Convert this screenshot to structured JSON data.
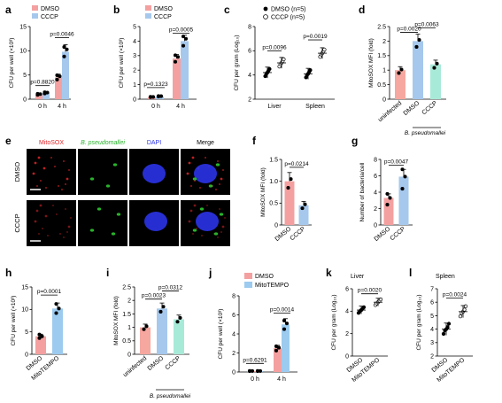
{
  "colors": {
    "dmso": "#f4a0a0",
    "cccp": "#a6c8ec",
    "mito": "#9ccbef",
    "cccp_mint": "#a8ead8",
    "uninfected": "#f6a79f",
    "dot": "#000000",
    "mitosox_red": "#e0262a",
    "bp_green": "#29b32b",
    "dapi_blue": "#2b33e8"
  },
  "panels": {
    "a": {
      "label": "a",
      "ylabel": "CFU per well (×10³)"
    },
    "b": {
      "label": "b",
      "ylabel": "CFU per well (×10³)"
    },
    "c": {
      "label": "c",
      "ylabel": "CFU per gram (Log₁₀)"
    },
    "d": {
      "label": "d",
      "ylabel": "MitoSOX MFI (fold)",
      "group": "B. pseudomallei"
    },
    "e": {
      "label": "e",
      "cols": [
        "MitoSOX",
        "B. pseudomallei",
        "DAPI",
        "Merge"
      ],
      "rows": [
        "DMSO",
        "CCCP"
      ]
    },
    "f": {
      "label": "f",
      "ylabel": "MitoSOX MFI (fold)"
    },
    "g": {
      "label": "g",
      "ylabel": "Number of bacteria/cell"
    },
    "h": {
      "label": "h",
      "ylabel": "CFU per well (×10³)"
    },
    "i": {
      "label": "i",
      "ylabel": "MitoSOX MFI (fold)",
      "group": "B. pseudomallei"
    },
    "j": {
      "label": "j",
      "ylabel": "CFU per well (×10³)"
    },
    "k": {
      "label": "k",
      "ylabel": "CFU per gram (Log₁₀)",
      "title": "Liver"
    },
    "l": {
      "label": "l",
      "ylabel": "CFU per gram (Log₁₀)",
      "title": "Spleen"
    }
  },
  "chart_data": [
    {
      "panel": "a",
      "type": "bar",
      "categories": [
        "0 h",
        "4 h"
      ],
      "series": [
        {
          "name": "DMSO",
          "values": [
            1.0,
            4.5
          ]
        },
        {
          "name": "CCCP",
          "values": [
            1.3,
            9.8
          ]
        }
      ],
      "ylim": [
        0,
        15
      ],
      "yticks": [
        "0",
        "5",
        "10",
        "15"
      ],
      "pvalues": [
        "p=0.8820",
        "p=0.0046"
      ]
    },
    {
      "panel": "b",
      "type": "bar",
      "categories": [
        "0 h",
        "4 h"
      ],
      "series": [
        {
          "name": "DMSO",
          "values": [
            0.15,
            2.8
          ]
        },
        {
          "name": "CCCP",
          "values": [
            0.2,
            4.0
          ]
        }
      ],
      "ylim": [
        0,
        5
      ],
      "yticks": [
        "0",
        "1",
        "2",
        "3",
        "4",
        "5"
      ],
      "pvalues": [
        "p=0.1323",
        "p=0.0005"
      ]
    },
    {
      "panel": "c",
      "type": "scatter",
      "categories": [
        "Liver",
        "Spleen"
      ],
      "series": [
        {
          "name": "DMSO (n=5)",
          "values": [
            4.2,
            4.1
          ]
        },
        {
          "name": "CCCP (n=5)",
          "values": [
            5.0,
            5.8
          ]
        }
      ],
      "ylim": [
        2,
        8
      ],
      "yticks": [
        "2",
        "4",
        "6",
        "8"
      ],
      "pvalues": [
        "p=0.0096",
        "p=0.0019"
      ]
    },
    {
      "panel": "d",
      "type": "bar",
      "categories": [
        "uninfected",
        "DMSO",
        "CCCP"
      ],
      "values": [
        1.0,
        2.0,
        1.2
      ],
      "ylim": [
        0,
        2.5
      ],
      "yticks": [
        "0",
        "0.5",
        "1",
        "1.5",
        "2",
        "2.5"
      ],
      "pvalues": [
        "p=0.0020",
        "p=0.0063"
      ]
    },
    {
      "panel": "f",
      "type": "bar",
      "categories": [
        "DMSO",
        "CCCP"
      ],
      "values": [
        1.0,
        0.45
      ],
      "ylim": [
        0,
        1.5
      ],
      "yticks": [
        "0",
        "0.5",
        "1.0",
        "1.5"
      ],
      "pvalues": [
        "p=0.0214"
      ]
    },
    {
      "panel": "g",
      "type": "bar",
      "categories": [
        "DMSO",
        "CCCP"
      ],
      "values": [
        3.3,
        5.9
      ],
      "ylim": [
        0,
        8
      ],
      "yticks": [
        "0",
        "2",
        "4",
        "6",
        "8"
      ],
      "pvalues": [
        "p=0.0047"
      ]
    },
    {
      "panel": "h",
      "type": "bar",
      "categories": [
        "DMSO",
        "MitoTEMPO"
      ],
      "values": [
        4.0,
        10.2
      ],
      "ylim": [
        0,
        15
      ],
      "yticks": [
        "0",
        "5",
        "10",
        "15"
      ],
      "pvalues": [
        "p=0.0001"
      ]
    },
    {
      "panel": "i",
      "type": "bar",
      "categories": [
        "uninfected",
        "DMSO",
        "CCCP"
      ],
      "values": [
        1.0,
        1.7,
        1.3
      ],
      "ylim": [
        0,
        2.5
      ],
      "yticks": [
        "0",
        "0.5",
        "1",
        "1.5",
        "2",
        "2.5"
      ],
      "pvalues": [
        "p=0.0023",
        "p=0.0312"
      ]
    },
    {
      "panel": "j",
      "type": "bar",
      "categories": [
        "0 h",
        "4 h"
      ],
      "series": [
        {
          "name": "DMSO",
          "values": [
            0.1,
            2.5
          ]
        },
        {
          "name": "MitoTEMPO",
          "values": [
            0.1,
            5.0
          ]
        }
      ],
      "ylim": [
        0,
        8
      ],
      "yticks": [
        "0",
        "2",
        "4",
        "6",
        "8"
      ],
      "pvalues": [
        "p=0.6291",
        "p=0.0014"
      ]
    },
    {
      "panel": "k",
      "type": "scatter",
      "categories": [
        "DMSO",
        "MitoTEMPO"
      ],
      "values": [
        4.1,
        4.8
      ],
      "ylim": [
        0,
        6
      ],
      "yticks": [
        "0",
        "2",
        "4",
        "6"
      ],
      "pvalues": [
        "p=0.0020"
      ]
    },
    {
      "panel": "l",
      "type": "scatter",
      "categories": [
        "DMSO",
        "MitoTEMPO"
      ],
      "values": [
        4.0,
        5.3
      ],
      "ylim": [
        2,
        7
      ],
      "yticks": [
        "2",
        "3",
        "4",
        "5",
        "6",
        "7"
      ],
      "pvalues": [
        "p=0.0024"
      ]
    }
  ]
}
